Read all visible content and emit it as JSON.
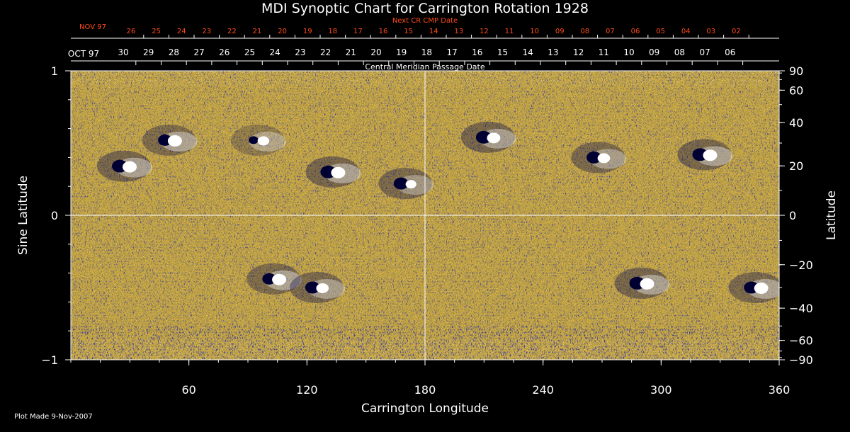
{
  "chart_data": {
    "type": "heatmap",
    "title": "MDI Synoptic Chart for Carrington Rotation 1928",
    "xlabel": "Carrington Longitude",
    "ylabel_left": "Sine Latitude",
    "ylabel_right": "Latitude",
    "xlim": [
      0,
      360
    ],
    "ylim": [
      -1,
      1
    ],
    "x_ticks": [
      "60",
      "120",
      "180",
      "240",
      "300",
      "360"
    ],
    "x_tick_values": [
      60,
      120,
      180,
      240,
      300,
      360
    ],
    "y_left_ticks": [
      "1",
      "0",
      "−1"
    ],
    "y_left_tick_values": [
      1,
      0,
      -1
    ],
    "y_right_ticks": [
      "90",
      "60",
      "40",
      "20",
      "0",
      "−20",
      "−40",
      "−60",
      "−90"
    ],
    "y_right_tick_values": [
      90,
      60,
      40,
      20,
      0,
      -20,
      -40,
      -60,
      -90
    ],
    "top_axis_label": "Next CR CMP Date",
    "top_axis_start": "NOV 97",
    "top_axis_dates": [
      "26",
      "25",
      "24",
      "23",
      "22",
      "21",
      "20",
      "19",
      "18",
      "17",
      "16",
      "15",
      "14",
      "13",
      "12",
      "11",
      "10",
      "09",
      "08",
      "07",
      "06",
      "05",
      "04",
      "03",
      "02"
    ],
    "mid_axis_label": "Central Meridian Passage Date",
    "mid_axis_start": "OCT 97",
    "mid_axis_dates": [
      "30",
      "29",
      "28",
      "27",
      "26",
      "25",
      "24",
      "23",
      "22",
      "21",
      "20",
      "19",
      "18",
      "17",
      "16",
      "15",
      "14",
      "13",
      "12",
      "11",
      "10",
      "09",
      "08",
      "07",
      "06"
    ],
    "colormap": [
      "#0a0a4a",
      "#c03000",
      "#ff8a20",
      "#ffffff"
    ],
    "gridlines": {
      "longitude": 180,
      "sine_latitude": 0
    },
    "active_regions": [
      {
        "lon": 27,
        "sinlat": 0.34,
        "pos": 1.0,
        "neg": 1.0
      },
      {
        "lon": 50,
        "sinlat": 0.52,
        "pos": 1.0,
        "neg": 0.8
      },
      {
        "lon": 133,
        "sinlat": 0.3,
        "pos": 1.0,
        "neg": 1.0
      },
      {
        "lon": 170,
        "sinlat": 0.22,
        "pos": 0.6,
        "neg": 0.9
      },
      {
        "lon": 95,
        "sinlat": 0.52,
        "pos": 0.7,
        "neg": 0.3
      },
      {
        "lon": 212,
        "sinlat": 0.54,
        "pos": 0.9,
        "neg": 1.0
      },
      {
        "lon": 268,
        "sinlat": 0.4,
        "pos": 0.8,
        "neg": 0.9
      },
      {
        "lon": 322,
        "sinlat": 0.42,
        "pos": 1.0,
        "neg": 1.0
      },
      {
        "lon": 103,
        "sinlat": -0.44,
        "pos": 1.0,
        "neg": 0.8
      },
      {
        "lon": 125,
        "sinlat": -0.5,
        "pos": 0.8,
        "neg": 0.9
      },
      {
        "lon": 290,
        "sinlat": -0.47,
        "pos": 1.0,
        "neg": 1.0
      },
      {
        "lon": 348,
        "sinlat": -0.5,
        "pos": 1.0,
        "neg": 0.9
      }
    ]
  },
  "footer": {
    "plot_made": "Plot Made  9-Nov-2007"
  }
}
